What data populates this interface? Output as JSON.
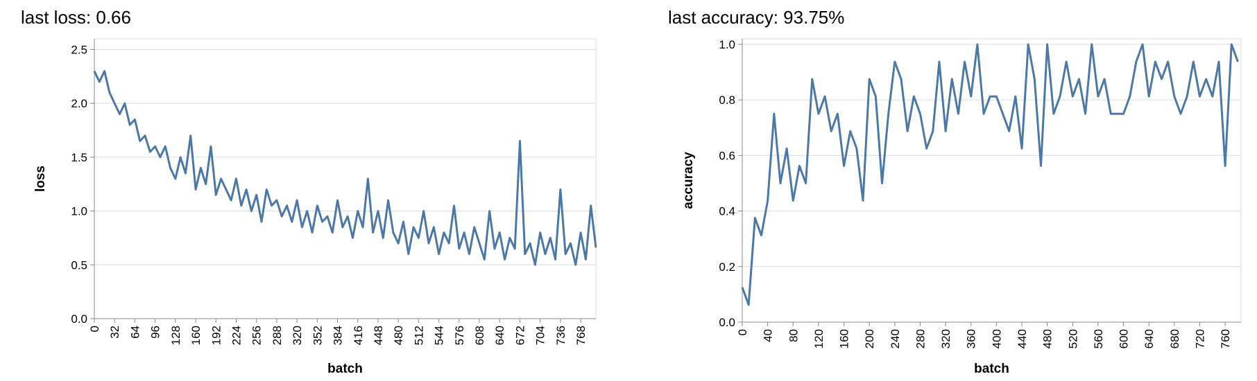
{
  "chart_data": [
    {
      "type": "line",
      "title": "last loss: 0.66",
      "x_label": "batch",
      "y_label": "loss",
      "x": [
        0,
        8,
        16,
        24,
        32,
        40,
        48,
        56,
        64,
        72,
        80,
        88,
        96,
        104,
        112,
        120,
        128,
        136,
        144,
        152,
        160,
        168,
        176,
        184,
        192,
        200,
        208,
        216,
        224,
        232,
        240,
        248,
        256,
        264,
        272,
        280,
        288,
        296,
        304,
        312,
        320,
        328,
        336,
        344,
        352,
        360,
        368,
        376,
        384,
        392,
        400,
        408,
        416,
        424,
        432,
        440,
        448,
        456,
        464,
        472,
        480,
        488,
        496,
        504,
        512,
        520,
        528,
        536,
        544,
        552,
        560,
        568,
        576,
        584,
        592,
        600,
        608,
        616,
        624,
        632,
        640,
        648,
        656,
        664,
        672,
        680,
        688,
        696,
        704,
        712,
        720,
        728,
        736,
        744,
        752,
        760,
        768,
        776,
        784,
        792
      ],
      "series": [
        {
          "name": "loss",
          "color": "#4c78a8",
          "values": [
            2.3,
            2.2,
            2.3,
            2.1,
            2.0,
            1.9,
            2.0,
            1.8,
            1.85,
            1.65,
            1.7,
            1.55,
            1.6,
            1.5,
            1.6,
            1.4,
            1.3,
            1.5,
            1.35,
            1.7,
            1.2,
            1.4,
            1.25,
            1.6,
            1.15,
            1.3,
            1.2,
            1.1,
            1.3,
            1.05,
            1.2,
            1.0,
            1.15,
            0.9,
            1.2,
            1.05,
            1.1,
            0.95,
            1.05,
            0.9,
            1.1,
            0.85,
            1.0,
            0.8,
            1.05,
            0.9,
            0.95,
            0.8,
            1.1,
            0.85,
            0.95,
            0.75,
            1.0,
            0.85,
            1.3,
            0.8,
            1.0,
            0.75,
            1.1,
            0.8,
            0.7,
            0.9,
            0.6,
            0.85,
            0.75,
            1.0,
            0.7,
            0.85,
            0.6,
            0.8,
            0.7,
            1.05,
            0.65,
            0.8,
            0.6,
            0.85,
            0.7,
            0.55,
            1.0,
            0.65,
            0.8,
            0.55,
            0.75,
            0.65,
            1.65,
            0.6,
            0.7,
            0.5,
            0.8,
            0.6,
            0.75,
            0.55,
            1.2,
            0.6,
            0.7,
            0.5,
            0.8,
            0.55,
            1.05,
            0.66
          ]
        }
      ],
      "xlim": [
        0,
        792
      ],
      "xticks": [
        0,
        32,
        64,
        96,
        128,
        160,
        192,
        224,
        256,
        288,
        320,
        352,
        384,
        416,
        448,
        480,
        512,
        544,
        576,
        608,
        640,
        672,
        704,
        736,
        768
      ],
      "ylim": [
        0,
        2.6
      ],
      "yticks": [
        {
          "value": 0,
          "label": "0.0"
        },
        0.5,
        {
          "value": 1,
          "label": "1.0"
        },
        1.5,
        {
          "value": 2,
          "label": "2.0"
        },
        2.5
      ],
      "grid": true
    },
    {
      "type": "line",
      "title": "last accuracy: 93.75%",
      "x_label": "batch",
      "y_label": "accuracy",
      "x": [
        0,
        10,
        20,
        30,
        40,
        50,
        60,
        70,
        80,
        90,
        100,
        110,
        120,
        130,
        140,
        150,
        160,
        170,
        180,
        190,
        200,
        210,
        220,
        230,
        240,
        250,
        260,
        270,
        280,
        290,
        300,
        310,
        320,
        330,
        340,
        350,
        360,
        370,
        380,
        390,
        400,
        410,
        420,
        430,
        440,
        450,
        460,
        470,
        480,
        490,
        500,
        510,
        520,
        530,
        540,
        550,
        560,
        570,
        580,
        590,
        600,
        610,
        620,
        630,
        640,
        650,
        660,
        670,
        680,
        690,
        700,
        710,
        720,
        730,
        740,
        750,
        760,
        770,
        780
      ],
      "series": [
        {
          "name": "accuracy",
          "color": "#4c78a8",
          "values": [
            0.125,
            0.0625,
            0.375,
            0.3125,
            0.4375,
            0.75,
            0.5,
            0.625,
            0.4375,
            0.5625,
            0.5,
            0.875,
            0.75,
            0.8125,
            0.6875,
            0.75,
            0.5625,
            0.6875,
            0.625,
            0.4375,
            0.875,
            0.8125,
            0.5,
            0.75,
            0.9375,
            0.875,
            0.6875,
            0.8125,
            0.75,
            0.625,
            0.6875,
            0.9375,
            0.6875,
            0.875,
            0.75,
            0.9375,
            0.8125,
            1.0,
            0.75,
            0.8125,
            0.8125,
            0.75,
            0.6875,
            0.8125,
            0.625,
            1.0,
            0.875,
            0.5625,
            1.0,
            0.75,
            0.8125,
            0.9375,
            0.8125,
            0.875,
            0.75,
            1.0,
            0.8125,
            0.875,
            0.75,
            0.75,
            0.75,
            0.8125,
            0.9375,
            1.0,
            0.8125,
            0.9375,
            0.875,
            0.9375,
            0.8125,
            0.75,
            0.8125,
            0.9375,
            0.8125,
            0.875,
            0.8125,
            0.9375,
            0.5625,
            1.0,
            0.9375
          ]
        }
      ],
      "xlim": [
        0,
        785
      ],
      "xticks": [
        0,
        40,
        80,
        120,
        160,
        200,
        240,
        280,
        320,
        360,
        400,
        440,
        480,
        520,
        560,
        600,
        640,
        680,
        720,
        760
      ],
      "ylim": [
        0,
        1.02
      ],
      "yticks": [
        {
          "value": 0,
          "label": "0.0"
        },
        0.2,
        0.4,
        0.6,
        0.8,
        {
          "value": 1,
          "label": "1.0"
        }
      ],
      "grid": true
    }
  ]
}
